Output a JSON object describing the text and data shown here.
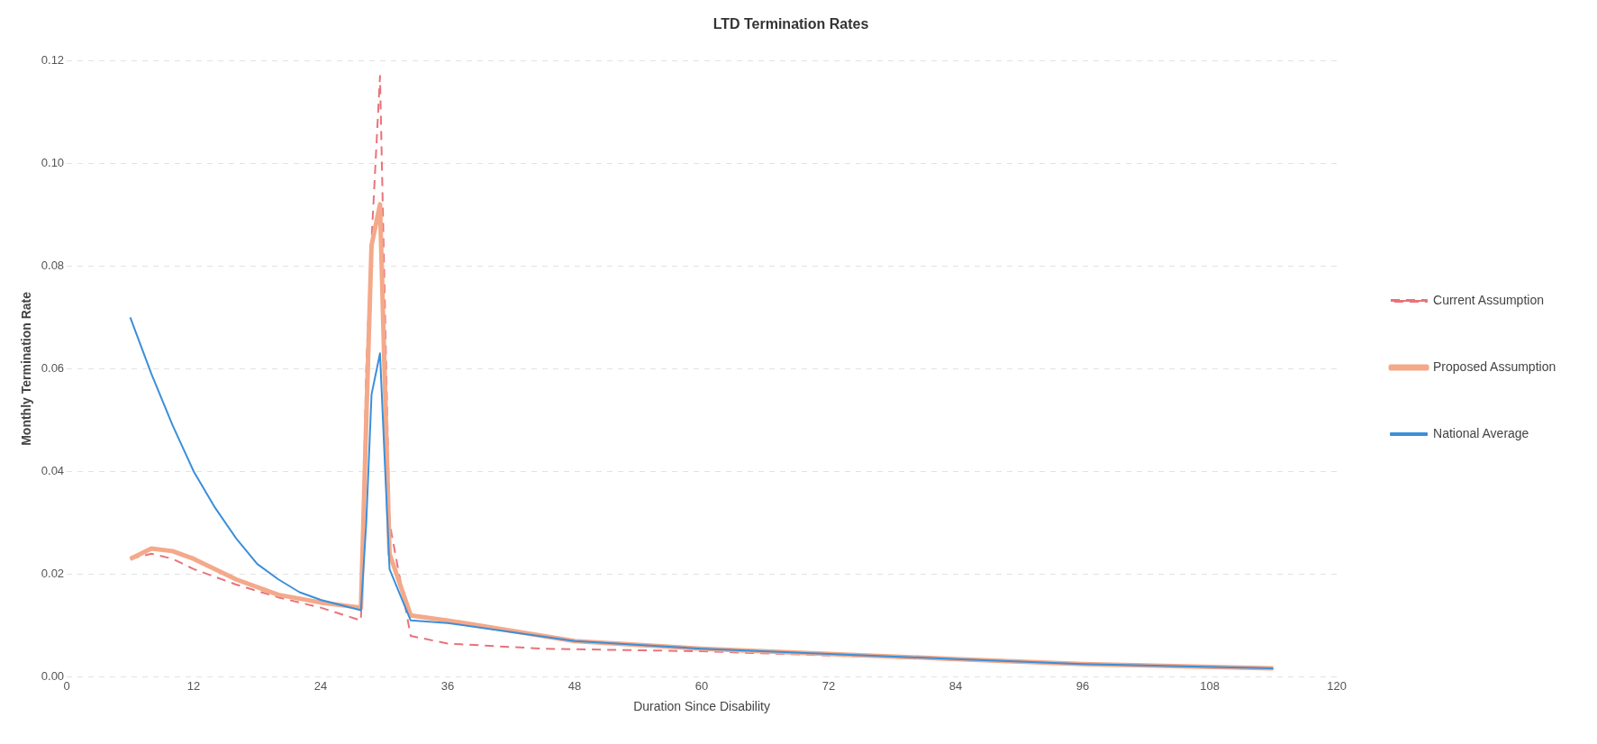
{
  "chart_data": {
    "type": "line",
    "title": "LTD Termination Rates",
    "xlabel": "Duration Since Disability",
    "ylabel": "Monthly Termination Rate",
    "xlim": [
      0,
      120
    ],
    "xticks": [
      0,
      12,
      24,
      36,
      48,
      60,
      72,
      84,
      96,
      108,
      120
    ],
    "ylim": [
      0,
      0.12
    ],
    "yticks": [
      {
        "value": 0,
        "label": "0.00"
      },
      {
        "value": 0.02,
        "label": "0.02"
      },
      {
        "value": 0.04,
        "label": "0.04"
      },
      {
        "value": 0.06,
        "label": "0.06"
      },
      {
        "value": 0.08,
        "label": "0.08"
      },
      {
        "value": 0.1,
        "label": "0.10"
      },
      {
        "value": 0.12,
        "label": "0.12"
      }
    ],
    "grid": "y",
    "legend": "right",
    "marker": "none",
    "series": [
      {
        "name": "Current Assumption",
        "color": "#e8737a",
        "line_style": "dashed",
        "x": [
          6,
          8,
          10,
          12,
          16,
          20,
          24,
          27.8,
          28.3,
          28.8,
          29.6,
          30.5,
          32.5,
          36,
          45,
          60,
          72,
          84,
          96,
          114
        ],
        "values": [
          0.023,
          0.024,
          0.023,
          0.021,
          0.018,
          0.0155,
          0.0135,
          0.011,
          0.06,
          0.085,
          0.117,
          0.03,
          0.008,
          0.0065,
          0.0055,
          0.005,
          0.0042,
          0.0034,
          0.0025,
          0.0015
        ]
      },
      {
        "name": "Proposed Assumption",
        "color": "#f4a98a",
        "line_style": "solid",
        "x": [
          6,
          8,
          10,
          12,
          16,
          20,
          24,
          27.8,
          28.3,
          28.8,
          29.6,
          30.5,
          32.5,
          36,
          48,
          60,
          72,
          84,
          96,
          114
        ],
        "values": [
          0.023,
          0.025,
          0.0245,
          0.023,
          0.019,
          0.016,
          0.0145,
          0.0135,
          0.05,
          0.084,
          0.092,
          0.024,
          0.012,
          0.011,
          0.007,
          0.0055,
          0.0045,
          0.0035,
          0.0025,
          0.0017
        ]
      },
      {
        "name": "National Average",
        "color": "#3b8fd9",
        "line_style": "solid",
        "x": [
          6,
          8,
          10,
          12,
          14,
          16,
          18,
          20,
          22,
          24,
          27.8,
          28.3,
          28.8,
          29.6,
          30.5,
          32.5,
          36,
          48,
          60,
          72,
          84,
          96,
          114
        ],
        "values": [
          0.07,
          0.059,
          0.049,
          0.04,
          0.033,
          0.027,
          0.022,
          0.019,
          0.0165,
          0.015,
          0.013,
          0.03,
          0.055,
          0.063,
          0.021,
          0.011,
          0.0105,
          0.007,
          0.0055,
          0.0045,
          0.0035,
          0.0025,
          0.0017
        ]
      }
    ]
  }
}
